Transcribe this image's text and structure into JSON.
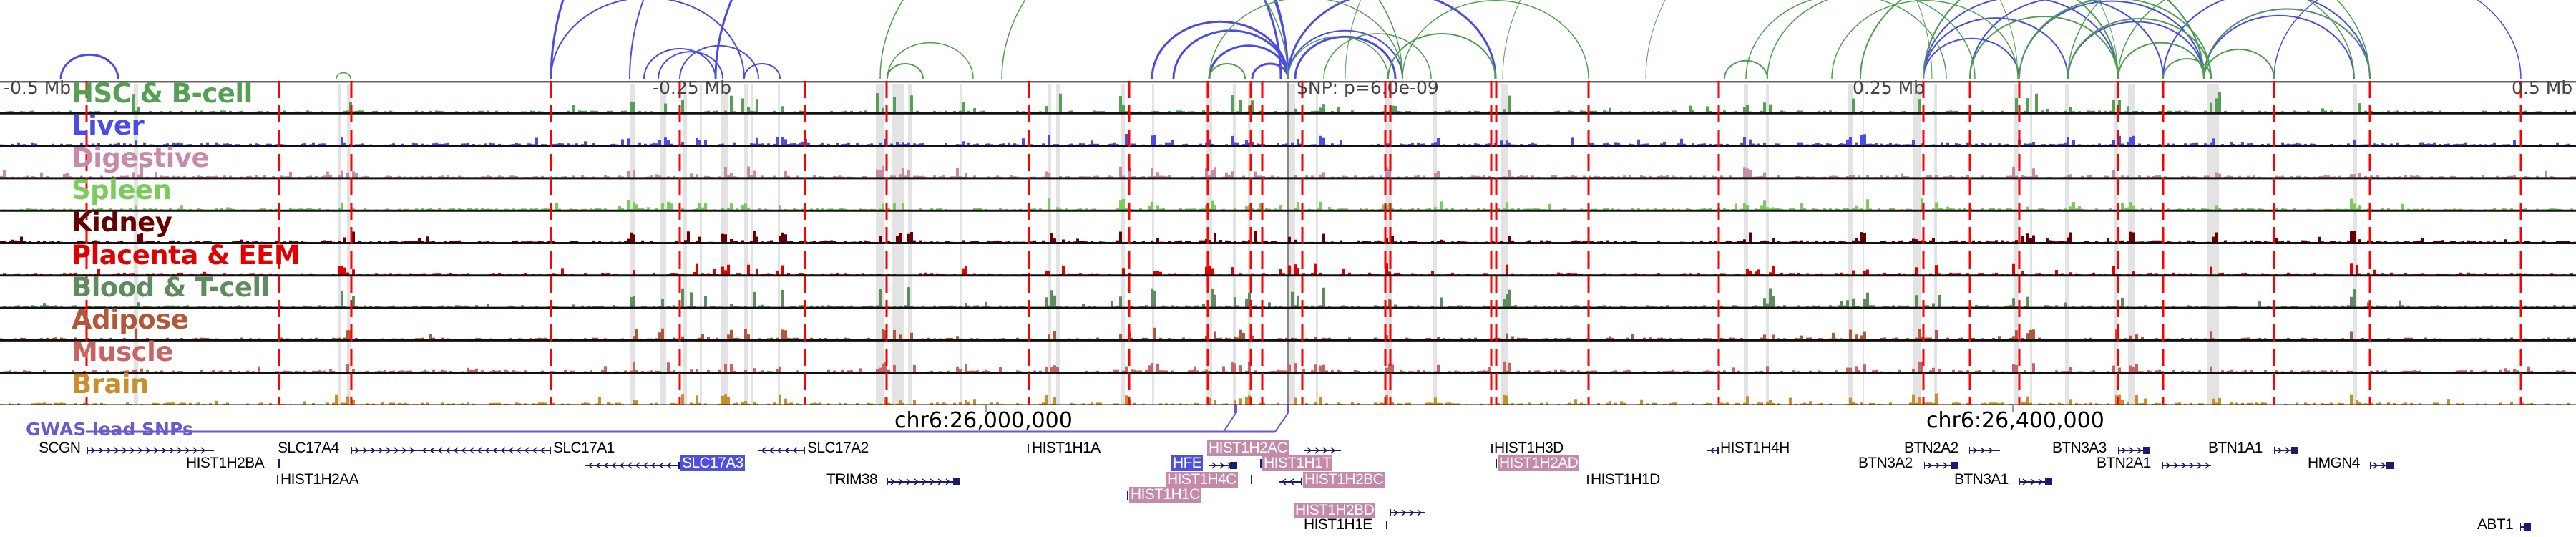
{
  "axis": {
    "left": "-0.5 Mb",
    "left_mid": "-0.25 Mb",
    "snp": "SNP: p=6.0e-09",
    "right_mid": "0.25 Mb",
    "right": "0.5 Mb"
  },
  "tracks": [
    {
      "label": "HSC & B-cell",
      "color": "#55a055"
    },
    {
      "label": "Liver",
      "color": "#4b4be6"
    },
    {
      "label": "Digestive",
      "color": "#c88aa8"
    },
    {
      "label": "Spleen",
      "color": "#7ccc5c"
    },
    {
      "label": "Kidney",
      "color": "#660000"
    },
    {
      "label": "Placenta & EEM",
      "color": "#e00000"
    },
    {
      "label": "Blood & T-cell",
      "color": "#5f8c5f"
    },
    {
      "label": "Adipose",
      "color": "#b0583a"
    },
    {
      "label": "Muscle",
      "color": "#c86462"
    },
    {
      "label": "Brain",
      "color": "#c8902a"
    }
  ],
  "coords": {
    "c1": "chr6:26,000,000",
    "c2": "chr6:26,400,000"
  },
  "gwas": {
    "label": "GWAS lead SNPs",
    "color": "#6a5acd"
  },
  "genes": [
    {
      "name": "SCGN"
    },
    {
      "name": "SLC17A4"
    },
    {
      "name": "SLC17A1"
    },
    {
      "name": "HIST1H2BA"
    },
    {
      "name": "HIST1H2AA"
    },
    {
      "name": "SLC17A3",
      "highlight": "blue"
    },
    {
      "name": "SLC17A2"
    },
    {
      "name": "TRIM38"
    },
    {
      "name": "HIST1H1A"
    },
    {
      "name": "HIST1H2AC",
      "highlight": "pink"
    },
    {
      "name": "HFE",
      "highlight": "blue"
    },
    {
      "name": "HIST1H1T",
      "highlight": "pink"
    },
    {
      "name": "HIST1H4C",
      "highlight": "pink"
    },
    {
      "name": "HIST1H2BC",
      "highlight": "pink"
    },
    {
      "name": "HIST1H1C",
      "highlight": "pink"
    },
    {
      "name": "HIST1H2BD",
      "highlight": "pink"
    },
    {
      "name": "HIST1H1E"
    },
    {
      "name": "HIST1H3D"
    },
    {
      "name": "HIST1H2AD",
      "highlight": "pink"
    },
    {
      "name": "HIST1H1D"
    },
    {
      "name": "HIST1H4H"
    },
    {
      "name": "BTN2A2"
    },
    {
      "name": "BTN3A2"
    },
    {
      "name": "BTN3A1"
    },
    {
      "name": "BTN3A3"
    },
    {
      "name": "BTN2A1"
    },
    {
      "name": "BTN1A1"
    },
    {
      "name": "HMGN4"
    },
    {
      "name": "ABT1"
    }
  ],
  "colors": {
    "arc_blue": "#4b4be6",
    "arc_green": "#4f9e4f",
    "enhancer_line": "#ff0000",
    "gene_glyph": "#1c1c6e"
  }
}
